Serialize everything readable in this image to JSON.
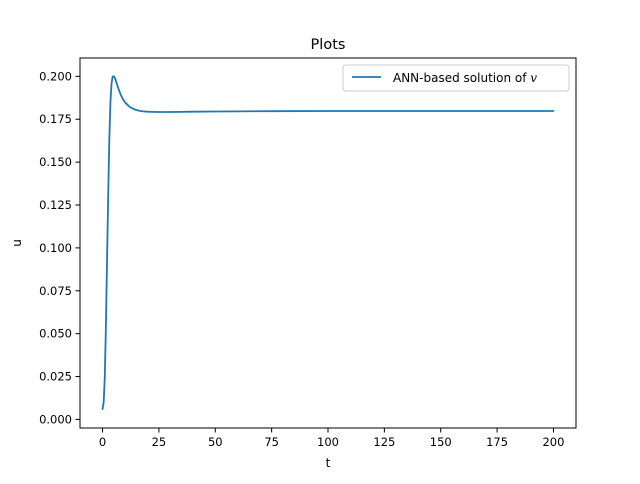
{
  "chart_data": {
    "type": "line",
    "title": "Plots",
    "xlabel": "t",
    "ylabel": "u",
    "xlim": [
      -10,
      210
    ],
    "ylim": [
      -0.005,
      0.2107
    ],
    "x_ticks": [
      0,
      25,
      50,
      75,
      100,
      125,
      150,
      175,
      200
    ],
    "x_tick_labels": [
      "0",
      "25",
      "50",
      "75",
      "100",
      "125",
      "150",
      "175",
      "200"
    ],
    "y_ticks": [
      0.0,
      0.025,
      0.05,
      0.075,
      0.1,
      0.125,
      0.15,
      0.175,
      0.2
    ],
    "y_tick_labels": [
      "0.000",
      "0.025",
      "0.050",
      "0.075",
      "0.100",
      "0.125",
      "0.150",
      "0.175",
      "0.200"
    ],
    "grid": false,
    "legend": {
      "position": "top-right",
      "entries": [
        {
          "prefix": "ANN-based solution of ",
          "math": "v"
        }
      ]
    },
    "colors": {
      "series": "#1f77b4",
      "axes": "#000000",
      "legend_border": "#cccccc"
    },
    "series": [
      {
        "name": "ANN-based solution of v",
        "x": [
          0,
          0.5,
          1,
          1.5,
          2,
          2.5,
          3,
          3.5,
          4,
          4.5,
          5,
          5.5,
          6,
          7,
          8,
          9,
          10,
          12,
          14,
          16,
          18,
          20,
          22,
          25,
          28,
          30,
          35,
          40,
          50,
          60,
          75,
          100,
          125,
          150,
          175,
          200
        ],
        "y": [
          0.006,
          0.01,
          0.025,
          0.055,
          0.093,
          0.13,
          0.163,
          0.185,
          0.196,
          0.2,
          0.2,
          0.199,
          0.197,
          0.193,
          0.1895,
          0.1868,
          0.1848,
          0.1822,
          0.1808,
          0.18,
          0.1796,
          0.1794,
          0.1793,
          0.1792,
          0.1792,
          0.1792,
          0.1793,
          0.1794,
          0.1795,
          0.1796,
          0.1797,
          0.1798,
          0.1798,
          0.1798,
          0.1798,
          0.1798
        ]
      }
    ]
  }
}
